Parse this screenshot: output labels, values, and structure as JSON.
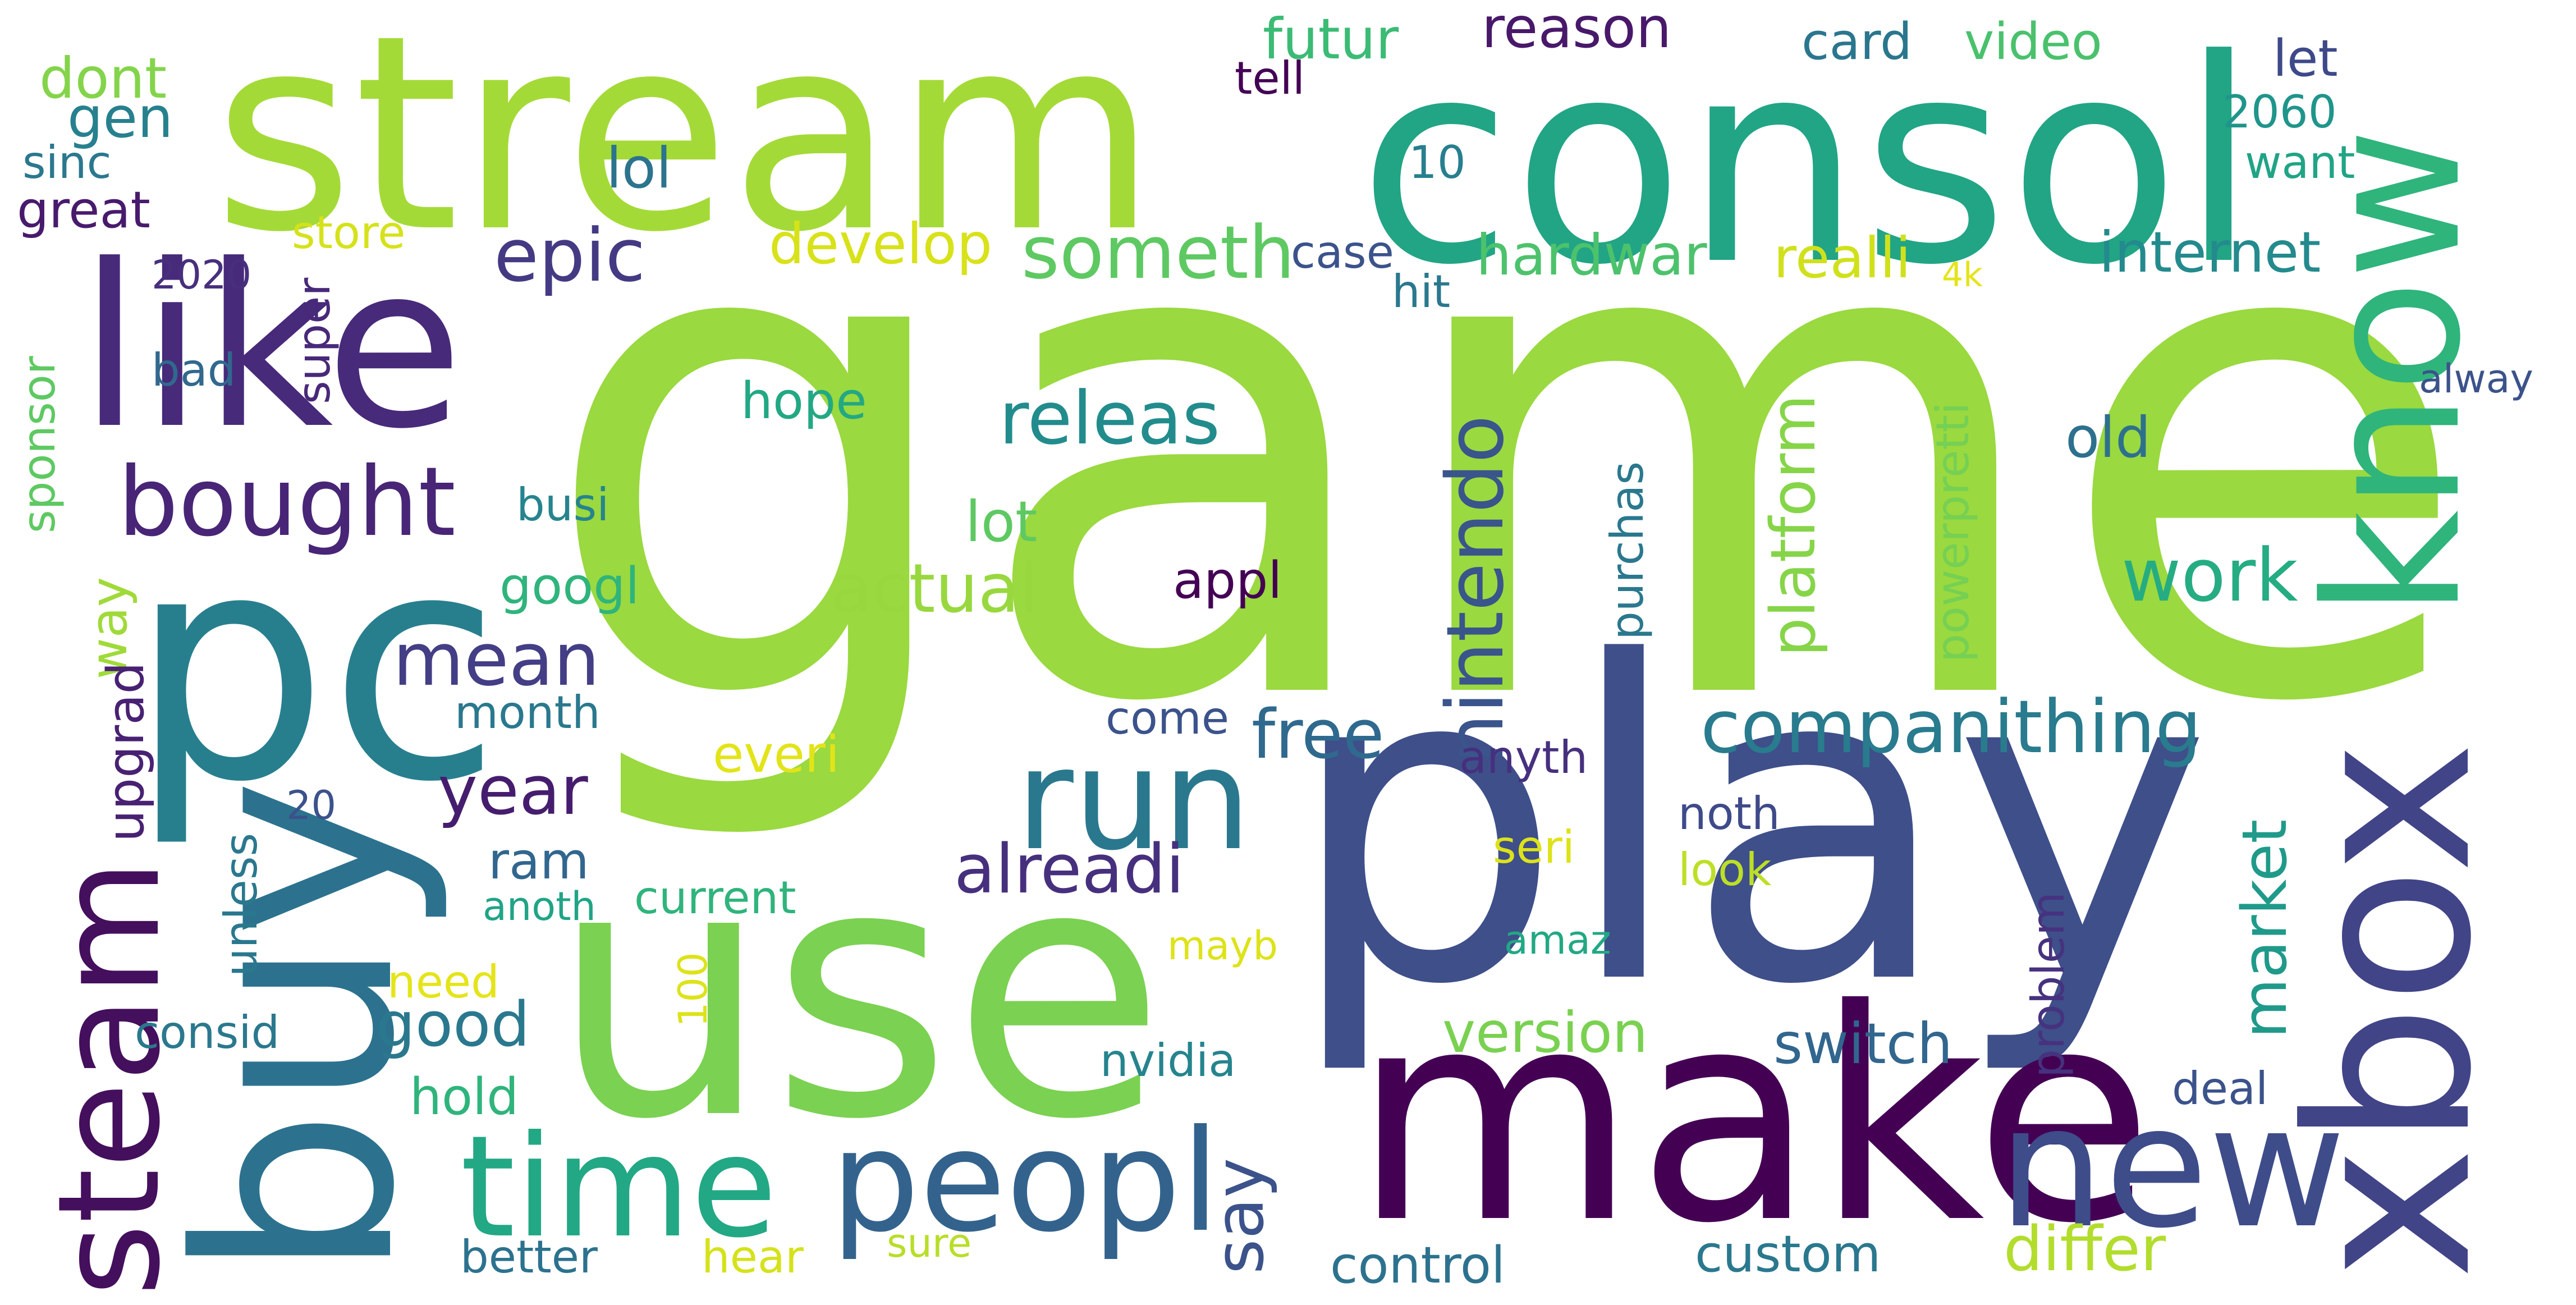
{
  "words": [
    {
      "text": "game",
      "color": "#9ad93f",
      "vertical": false
    },
    {
      "text": "stream",
      "color": "#a4da37",
      "vertical": false
    },
    {
      "text": "consol",
      "color": "#21a585",
      "vertical": false
    },
    {
      "text": "like",
      "color": "#472a7a",
      "vertical": false
    },
    {
      "text": "pc",
      "color": "#277f8e",
      "vertical": false
    },
    {
      "text": "play",
      "color": "#3e4f8a",
      "vertical": false
    },
    {
      "text": "use",
      "color": "#7bd151",
      "vertical": false
    },
    {
      "text": "buy",
      "color": "#2c728e",
      "vertical": true
    },
    {
      "text": "know",
      "color": "#2fb47c",
      "vertical": true
    },
    {
      "text": "xbox",
      "color": "#414487",
      "vertical": true
    },
    {
      "text": "make",
      "color": "#440154",
      "vertical": false
    },
    {
      "text": "new",
      "color": "#3e4c8a",
      "vertical": false
    },
    {
      "text": "time",
      "color": "#22a884",
      "vertical": false
    },
    {
      "text": "peopl",
      "color": "#33638d",
      "vertical": false
    },
    {
      "text": "steam",
      "color": "#440f5c",
      "vertical": true
    },
    {
      "text": "bought",
      "color": "#482576",
      "vertical": false
    },
    {
      "text": "run",
      "color": "#2a788e",
      "vertical": false
    },
    {
      "text": "companithing",
      "color": "#297b8e",
      "vertical": false
    },
    {
      "text": "nintendo",
      "color": "#3a548c",
      "vertical": true
    },
    {
      "text": "releas",
      "color": "#228c8d",
      "vertical": false
    },
    {
      "text": "epic",
      "color": "#443a83",
      "vertical": false
    },
    {
      "text": "someth",
      "color": "#5ec962",
      "vertical": false
    },
    {
      "text": "mean",
      "color": "#433e85",
      "vertical": false
    },
    {
      "text": "year",
      "color": "#461d6e",
      "vertical": false
    },
    {
      "text": "alreadi",
      "color": "#46307e",
      "vertical": false
    },
    {
      "text": "actual",
      "color": "#98d83e",
      "vertical": false
    },
    {
      "text": "work",
      "color": "#25ac82",
      "vertical": false
    },
    {
      "text": "market",
      "color": "#1f9a8a",
      "vertical": true
    },
    {
      "text": "free",
      "color": "#30698e",
      "vertical": false
    },
    {
      "text": "say",
      "color": "#3b528b",
      "vertical": true
    },
    {
      "text": "good",
      "color": "#2a788e",
      "vertical": false
    },
    {
      "text": "differ",
      "color": "#b2dd2d",
      "vertical": false
    },
    {
      "text": "switch",
      "color": "#31668e",
      "vertical": false
    },
    {
      "text": "version",
      "color": "#7ad151",
      "vertical": false
    },
    {
      "text": "platform",
      "color": "#86d549",
      "vertical": true
    },
    {
      "text": "internet",
      "color": "#238a8d",
      "vertical": false
    },
    {
      "text": "futur",
      "color": "#3bbb75",
      "vertical": false
    },
    {
      "text": "reason",
      "color": "#48186a",
      "vertical": false
    },
    {
      "text": "card",
      "color": "#2a768e",
      "vertical": false
    },
    {
      "text": "video",
      "color": "#4ac16d",
      "vertical": false
    },
    {
      "text": "let",
      "color": "#3e4989",
      "vertical": false
    },
    {
      "text": "2060",
      "color": "#1f958b",
      "vertical": false
    },
    {
      "text": "want",
      "color": "#20a486",
      "vertical": false
    },
    {
      "text": "dont",
      "color": "#84d44b",
      "vertical": false
    },
    {
      "text": "gen",
      "color": "#27808e",
      "vertical": false
    },
    {
      "text": "sinc",
      "color": "#2a788e",
      "vertical": false
    },
    {
      "text": "great",
      "color": "#481a6c",
      "vertical": false
    },
    {
      "text": "store",
      "color": "#d5e21a",
      "vertical": false
    },
    {
      "text": "2020",
      "color": "#472f7d",
      "vertical": false
    },
    {
      "text": "lol",
      "color": "#2c738e",
      "vertical": false
    },
    {
      "text": "10",
      "color": "#277f8e",
      "vertical": false
    },
    {
      "text": "tell",
      "color": "#440154",
      "vertical": false
    },
    {
      "text": "develop",
      "color": "#d8e219",
      "vertical": false
    },
    {
      "text": "case",
      "color": "#3b528b",
      "vertical": false
    },
    {
      "text": "hardwar",
      "color": "#4cc26c",
      "vertical": false
    },
    {
      "text": "realli",
      "color": "#d0e11c",
      "vertical": false
    },
    {
      "text": "hit",
      "color": "#2a788e",
      "vertical": false
    },
    {
      "text": "4k",
      "color": "#e5e419",
      "vertical": false
    },
    {
      "text": "super",
      "color": "#482979",
      "vertical": true
    },
    {
      "text": "bad",
      "color": "#31688e",
      "vertical": false
    },
    {
      "text": "sponsor",
      "color": "#5ec962",
      "vertical": true
    },
    {
      "text": "hope",
      "color": "#22a884",
      "vertical": false
    },
    {
      "text": "old",
      "color": "#2d708e",
      "vertical": false
    },
    {
      "text": "alway",
      "color": "#3b528b",
      "vertical": false
    },
    {
      "text": "powerpretti",
      "color": "#75d054",
      "vertical": true
    },
    {
      "text": "purchas",
      "color": "#2a788e",
      "vertical": true
    },
    {
      "text": "busi",
      "color": "#25848e",
      "vertical": false
    },
    {
      "text": "lot",
      "color": "#5ec962",
      "vertical": false
    },
    {
      "text": "appl",
      "color": "#440154",
      "vertical": false
    },
    {
      "text": "googl",
      "color": "#2fb47c",
      "vertical": false
    },
    {
      "text": "way",
      "color": "#a0da39",
      "vertical": true
    },
    {
      "text": "month",
      "color": "#2a788e",
      "vertical": false
    },
    {
      "text": "come",
      "color": "#3b528b",
      "vertical": false
    },
    {
      "text": "upgrad",
      "color": "#482173",
      "vertical": true
    },
    {
      "text": "everi",
      "color": "#e2e418",
      "vertical": false
    },
    {
      "text": "anyth",
      "color": "#46307e",
      "vertical": false
    },
    {
      "text": "20",
      "color": "#3b528b",
      "vertical": false
    },
    {
      "text": "unless",
      "color": "#2a788e",
      "vertical": true
    },
    {
      "text": "noth",
      "color": "#3e4a89",
      "vertical": false
    },
    {
      "text": "seri",
      "color": "#dde318",
      "vertical": false
    },
    {
      "text": "look",
      "color": "#bddf26",
      "vertical": false
    },
    {
      "text": "ram",
      "color": "#31668e",
      "vertical": false
    },
    {
      "text": "anoth",
      "color": "#20a486",
      "vertical": false
    },
    {
      "text": "current",
      "color": "#2fb47c",
      "vertical": false
    },
    {
      "text": "amaz",
      "color": "#22a884",
      "vertical": false
    },
    {
      "text": "problem",
      "color": "#46327e",
      "vertical": true
    },
    {
      "text": "mayb",
      "color": "#dde318",
      "vertical": false
    },
    {
      "text": "100",
      "color": "#dde318",
      "vertical": true
    },
    {
      "text": "need",
      "color": "#e5e419",
      "vertical": false
    },
    {
      "text": "consid",
      "color": "#2a788e",
      "vertical": false
    },
    {
      "text": "nvidia",
      "color": "#25848e",
      "vertical": false
    },
    {
      "text": "hold",
      "color": "#2fb47c",
      "vertical": false
    },
    {
      "text": "deal",
      "color": "#3b528b",
      "vertical": false
    },
    {
      "text": "better",
      "color": "#2c728e",
      "vertical": false
    },
    {
      "text": "hear",
      "color": "#d5e21a",
      "vertical": false
    },
    {
      "text": "sure",
      "color": "#b8de29",
      "vertical": false
    },
    {
      "text": "control",
      "color": "#2c728e",
      "vertical": false
    },
    {
      "text": "custom",
      "color": "#2a788e",
      "vertical": false
    }
  ]
}
